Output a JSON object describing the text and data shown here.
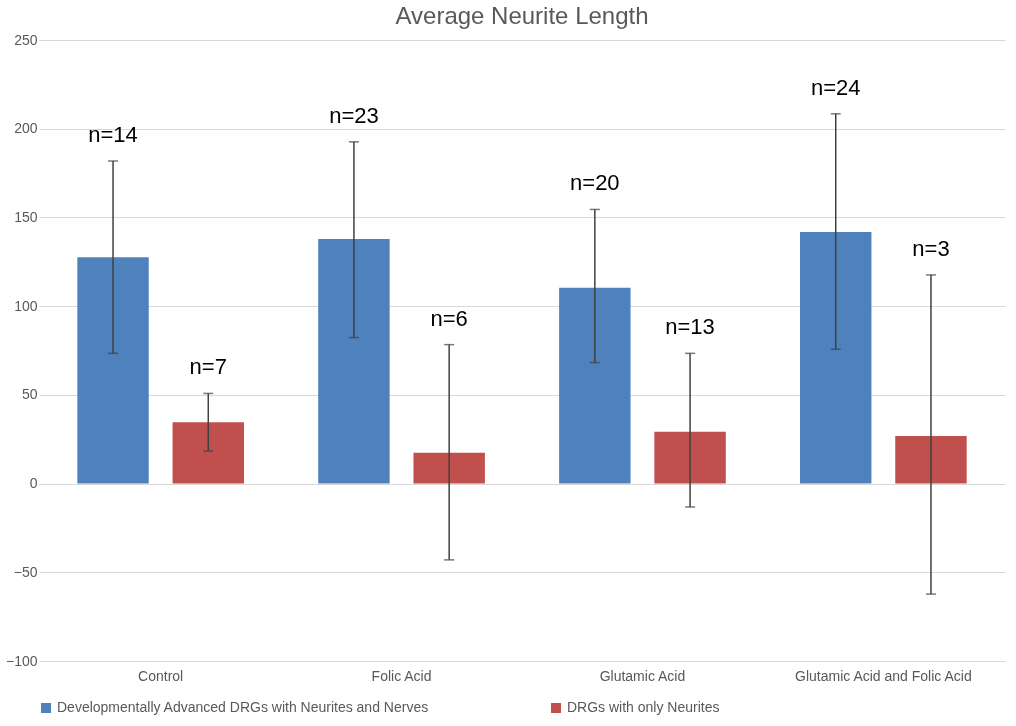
{
  "chart_data": {
    "type": "bar",
    "title": "Average Neurite Length",
    "categories": [
      "Control",
      "Folic Acid",
      "Glutamic Acid",
      "Glutamic Acid and Folic Acid"
    ],
    "series": [
      {
        "name": "Developmentally Advanced DRGs with Neurites and Nerves",
        "color": "#4f81bd",
        "values": [
          127.5,
          137.8,
          110.3,
          141.8
        ],
        "errors": [
          [
            73.4,
            181.8
          ],
          [
            82.3,
            192.6
          ],
          [
            68.2,
            154.5
          ],
          [
            75.7,
            208.4
          ]
        ]
      },
      {
        "name": "DRGs with only Neurites",
        "color": "#c0504d",
        "values": [
          34.6,
          17.4,
          29.2,
          26.8
        ],
        "errors": [
          [
            18.3,
            50.8
          ],
          [
            -43,
            78.3
          ],
          [
            -13.2,
            73.4
          ],
          [
            -62.3,
            117.6
          ]
        ]
      }
    ],
    "annotations": [
      "n=14",
      "n=7",
      "n=23",
      "n=6",
      "n=20",
      "n=13",
      "n=24",
      "n=3"
    ],
    "ylim": [
      -100,
      250
    ],
    "yticks": [
      -100,
      -50,
      0,
      50,
      100,
      150,
      200,
      250
    ],
    "grid": "y",
    "legend": "bottom"
  }
}
